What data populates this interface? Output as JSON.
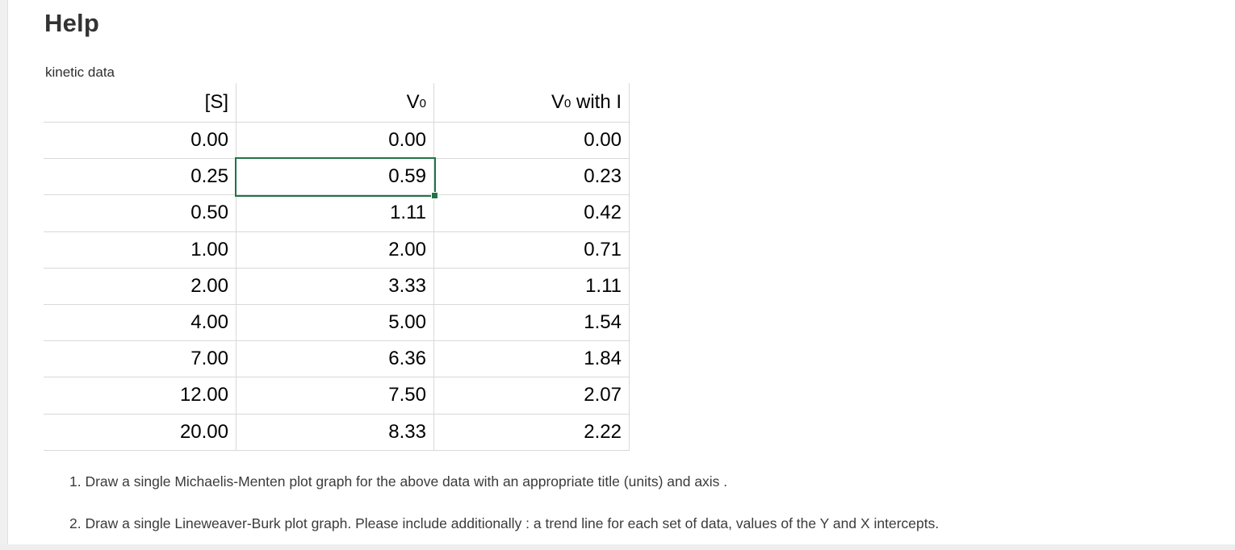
{
  "page": {
    "title": "Help",
    "caption": "kinetic data"
  },
  "table": {
    "columns": [
      {
        "base": "[S]",
        "sub": "",
        "rest": ""
      },
      {
        "base": "V",
        "sub": "0",
        "rest": ""
      },
      {
        "base": "V",
        "sub": "0",
        "rest": " with I"
      }
    ],
    "rows": [
      [
        "0.00",
        "0.00",
        "0.00"
      ],
      [
        "0.25",
        "0.59",
        "0.23"
      ],
      [
        "0.50",
        "1.11",
        "0.42"
      ],
      [
        "1.00",
        "2.00",
        "0.71"
      ],
      [
        "2.00",
        "3.33",
        "1.11"
      ],
      [
        "4.00",
        "5.00",
        "1.54"
      ],
      [
        "7.00",
        "6.36",
        "1.84"
      ],
      [
        "12.00",
        "7.50",
        "2.07"
      ],
      [
        "20.00",
        "8.33",
        "2.22"
      ]
    ],
    "selection": {
      "row_s_value": "0.25",
      "column": "V0",
      "value": "0.59",
      "border_color": "#217346"
    }
  },
  "instructions": [
    "1. Draw a single Michaelis-Menten plot graph for the above data with an appropriate title (units) and axis .",
    "2. Draw a single Lineweaver-Burk plot graph. Please include additionally : a trend line for each set of data, values of the Y and X intercepts."
  ],
  "colors": {
    "selection_green": "#217346",
    "gridline": "#d9d9d9",
    "gutter": "#f0f0f1",
    "text_dark": "#333333"
  }
}
